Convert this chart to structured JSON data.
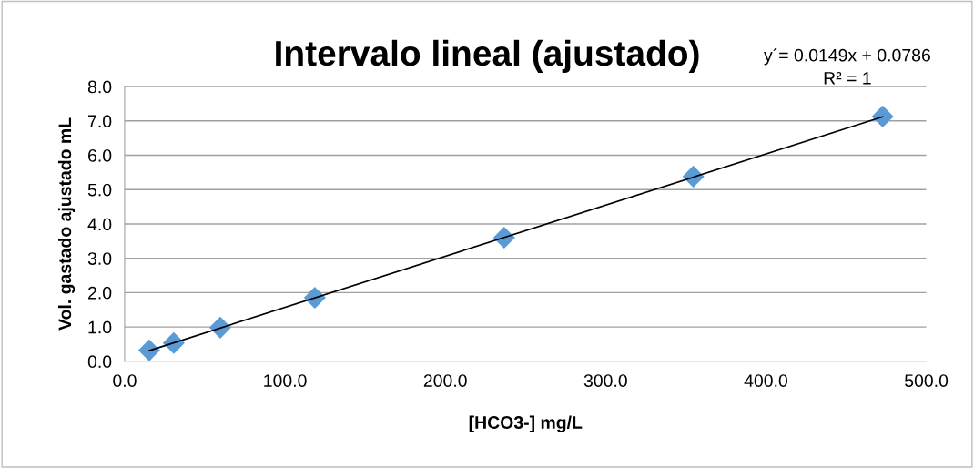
{
  "chart_data": {
    "type": "scatter",
    "title": "Intervalo lineal (ajustado)",
    "xlabel": "[HCO3-] mg/L",
    "ylabel": "Vol. gastado ajustado mL",
    "annotations": [
      "y´= 0.0149x + 0.0786\nR² = 1"
    ],
    "series": [
      {
        "color": "#5b9bd5",
        "marker": "diamond",
        "x": [
          15.3,
          30.6,
          59.6,
          118.6,
          236.7,
          354.7,
          472.8
        ],
        "values": [
          0.32,
          0.53,
          0.98,
          1.85,
          3.6,
          5.38,
          7.13
        ]
      },
      {
        "type": "line",
        "color": "#000000",
        "marker": "none",
        "x": [
          15.3,
          472.8
        ],
        "values": [
          0.31,
          7.12
        ]
      }
    ],
    "xlim": [
      0,
      500
    ],
    "xticks": [
      {
        "value": 0,
        "label": "0.0"
      },
      {
        "value": 100,
        "label": "100.0"
      },
      {
        "value": 200,
        "label": "200.0"
      },
      {
        "value": 300,
        "label": "300.0"
      },
      {
        "value": 400,
        "label": "400.0"
      },
      {
        "value": 500,
        "label": "500.0"
      }
    ],
    "ylim": [
      0,
      8
    ],
    "yticks": [
      {
        "value": 0,
        "label": "0.0"
      },
      {
        "value": 1,
        "label": "1.0"
      },
      {
        "value": 2,
        "label": "2.0"
      },
      {
        "value": 3,
        "label": "3.0"
      },
      {
        "value": 4,
        "label": "4.0"
      },
      {
        "value": 5,
        "label": "5.0"
      },
      {
        "value": 6,
        "label": "6.0"
      },
      {
        "value": 7,
        "label": "7.0"
      },
      {
        "value": 8,
        "label": "8.0"
      }
    ],
    "grid": "y",
    "legend": false
  }
}
